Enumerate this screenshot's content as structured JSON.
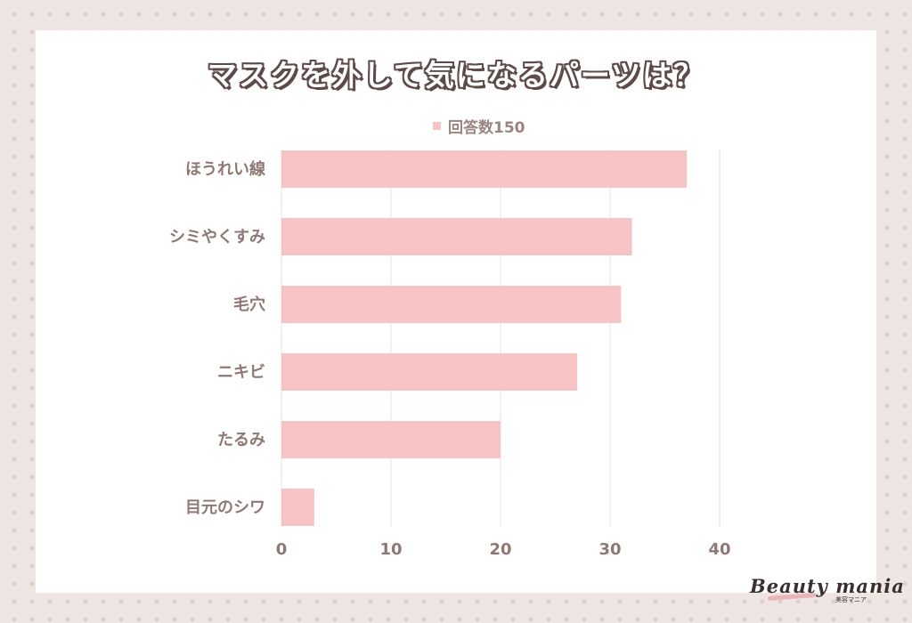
{
  "chart_data": {
    "type": "bar",
    "orientation": "horizontal",
    "title": "マスクを外して気になるパーツは？",
    "categories": [
      "ほうれい線",
      "シミやくすみ",
      "毛穴",
      "ニキビ",
      "たるみ",
      "目元のシワ"
    ],
    "series": [
      {
        "name": "回答数150",
        "values": [
          37,
          32,
          31,
          27,
          20,
          3
        ],
        "color": "#f7c4c5"
      }
    ],
    "xlim": [
      0,
      40
    ],
    "xticks": [
      0,
      10,
      20,
      30,
      40
    ],
    "grid": true,
    "legend_position": "top"
  },
  "brand": {
    "logo_text": "Beauty mania",
    "logo_subtext": "美容マニア"
  },
  "colors": {
    "bar": "#f7c4c5",
    "label": "#8f7874",
    "grid": "#e9e4e3"
  }
}
